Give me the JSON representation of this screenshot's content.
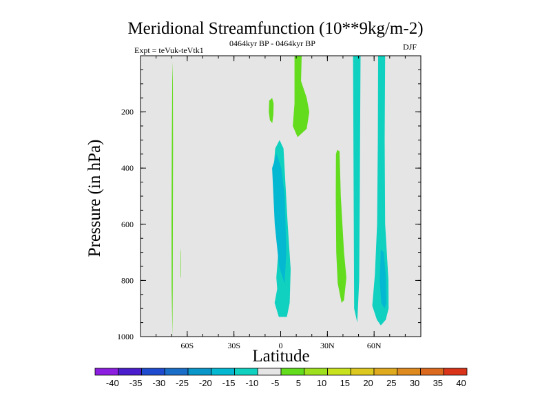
{
  "header": {
    "title": "Meridional Streamfunction (10**9kg/m-2)",
    "expt": "Expt = teVuk-teVtk1",
    "period": "0464kyr BP - 0464kyr BP",
    "season": "DJF"
  },
  "chart_data": {
    "type": "contour",
    "title": "Meridional Streamfunction (10**9kg/m-2)",
    "xlabel": "Latitude",
    "ylabel": "Pressure (in hPa)",
    "xlim": [
      -90,
      90
    ],
    "ylim": [
      1000,
      0
    ],
    "x_ticks": [
      {
        "value": -60,
        "label": "60S"
      },
      {
        "value": -30,
        "label": "30S"
      },
      {
        "value": 0,
        "label": "0"
      },
      {
        "value": 30,
        "label": "30N"
      },
      {
        "value": 60,
        "label": "60N"
      }
    ],
    "y_ticks": [
      {
        "value": 200,
        "label": "200"
      },
      {
        "value": 400,
        "label": "400"
      },
      {
        "value": 600,
        "label": "600"
      },
      {
        "value": 800,
        "label": "800"
      },
      {
        "value": 1000,
        "label": "1000"
      }
    ],
    "background_color": "#e5e5e5",
    "regions": [
      {
        "level": 5,
        "color": "#64dc1e",
        "points": [
          [
            -69.5,
            1000
          ],
          [
            -69.3,
            830
          ],
          [
            -69.2,
            600
          ],
          [
            -69.1,
            330
          ],
          [
            -69.2,
            90
          ],
          [
            -69.8,
            0
          ],
          [
            -69.7,
            0
          ],
          [
            -69.6,
            90
          ],
          [
            -69.9,
            330
          ],
          [
            -70.1,
            600
          ],
          [
            -70.0,
            830
          ]
        ]
      },
      {
        "level": 5,
        "color": "#64dc1e",
        "points": [
          [
            -64.0,
            700
          ],
          [
            -64.2,
            685
          ],
          [
            -64.3,
            750
          ],
          [
            -64.2,
            790
          ],
          [
            -64.0,
            790
          ]
        ]
      },
      {
        "level": -5,
        "color": "#10d0c0",
        "points": [
          [
            -2.2,
            830
          ],
          [
            -2.8,
            790
          ],
          [
            -1.5,
            700
          ],
          [
            -3,
            500
          ],
          [
            -4.5,
            400
          ],
          [
            -3.5,
            330
          ],
          [
            -0.7,
            300
          ],
          [
            1.8,
            330
          ],
          [
            3,
            450
          ],
          [
            4.5,
            600
          ],
          [
            6.4,
            760
          ],
          [
            5.8,
            880
          ],
          [
            4,
            930
          ],
          [
            -1.2,
            930
          ],
          [
            -3.9,
            880
          ]
        ]
      },
      {
        "level": -10,
        "color": "#04b8d2",
        "points": [
          [
            -5.5,
            400
          ],
          [
            -3.8,
            600
          ],
          [
            -1.0,
            750
          ],
          [
            2.5,
            810
          ],
          [
            3.6,
            700
          ],
          [
            2.6,
            500
          ],
          [
            0.4,
            400
          ],
          [
            -2.6,
            350
          ]
        ]
      },
      {
        "level": 5,
        "color": "#64dc1e",
        "points": [
          [
            -6.9,
            230
          ],
          [
            -7.6,
            200
          ],
          [
            -7.4,
            160
          ],
          [
            -5.5,
            150
          ],
          [
            -4.5,
            170
          ],
          [
            -4.7,
            210
          ],
          [
            -5.4,
            240
          ]
        ]
      },
      {
        "level": 5,
        "color": "#64dc1e",
        "points": [
          [
            8.9,
            0
          ],
          [
            8.9,
            170
          ],
          [
            7.8,
            250
          ],
          [
            10.9,
            290
          ],
          [
            16.7,
            260
          ],
          [
            18.4,
            200
          ],
          [
            16.7,
            150
          ],
          [
            13.1,
            90
          ],
          [
            13.5,
            0
          ]
        ]
      },
      {
        "level": 5,
        "color": "#64dc1e",
        "points": [
          [
            35.5,
            350
          ],
          [
            36.3,
            335
          ],
          [
            37.8,
            340
          ],
          [
            38.6,
            500
          ],
          [
            40.7,
            700
          ],
          [
            42.2,
            790
          ],
          [
            40.7,
            870
          ],
          [
            39.1,
            880
          ],
          [
            36.6,
            810
          ],
          [
            35.7,
            700
          ],
          [
            35.4,
            500
          ]
        ]
      },
      {
        "level": -5,
        "color": "#10d0c0",
        "points": [
          [
            46.5,
            0
          ],
          [
            47.2,
            900
          ],
          [
            49.2,
            950
          ],
          [
            50.4,
            800
          ],
          [
            50.8,
            500
          ],
          [
            51.1,
            200
          ],
          [
            51.3,
            0
          ]
        ]
      },
      {
        "level": -5,
        "color": "#10d0c0",
        "points": [
          [
            62.6,
            0
          ],
          [
            62.4,
            300
          ],
          [
            61.9,
            600
          ],
          [
            60.5,
            780
          ],
          [
            58.8,
            890
          ],
          [
            61.8,
            940
          ],
          [
            64.3,
            960
          ],
          [
            67.5,
            940
          ],
          [
            69.3,
            900
          ],
          [
            69.2,
            800
          ],
          [
            67.1,
            600
          ],
          [
            66.8,
            300
          ],
          [
            67.1,
            0
          ]
        ]
      },
      {
        "level": -10,
        "color": "#04b8d2",
        "points": [
          [
            64.3,
            690
          ],
          [
            63.6,
            800
          ],
          [
            64.6,
            880
          ],
          [
            66.7,
            900
          ],
          [
            67.9,
            880
          ],
          [
            67.5,
            780
          ],
          [
            66.1,
            700
          ]
        ]
      }
    ]
  },
  "colorbar": {
    "colors": [
      "#8c1ee0",
      "#4a1ecc",
      "#1f4ccf",
      "#1a6ec8",
      "#0a96c8",
      "#04b8d2",
      "#10d0c0",
      "#e5e5e5",
      "#64dc1e",
      "#9ee01e",
      "#c8e21e",
      "#dcc81e",
      "#e0aa1e",
      "#de8a1e",
      "#dc6a1e",
      "#d9341a"
    ],
    "labels": [
      "-40",
      "-35",
      "-30",
      "-25",
      "-20",
      "-15",
      "-10",
      "-5",
      "5",
      "10",
      "15",
      "20",
      "25",
      "30",
      "35",
      "40"
    ]
  }
}
